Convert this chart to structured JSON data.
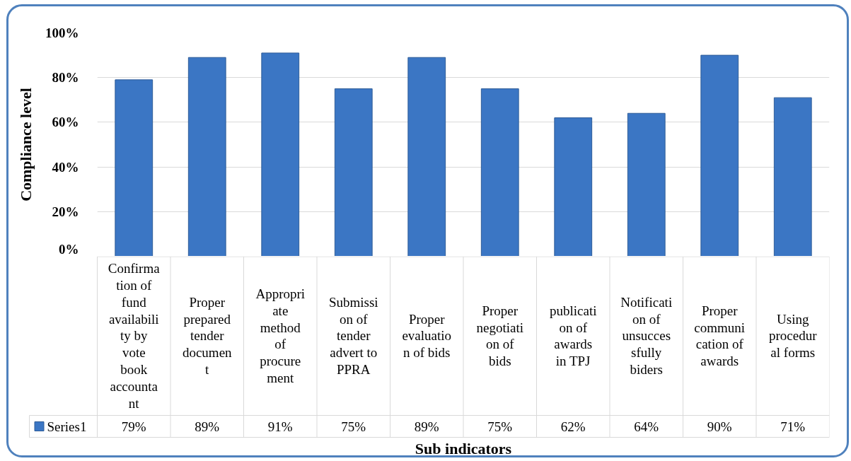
{
  "chart_data": {
    "type": "bar",
    "xlabel": "Sub indicators",
    "ylabel": "Compliance level",
    "categories": [
      "Confirmation of fund availability by vote book accountant",
      "Proper prepared tender document",
      "Appropriate method of procurement",
      "Submission of tender advert to PPRA",
      "Proper evaluation of bids",
      "Proper negotiation of bids",
      "publication of awards in TPJ",
      "Notification of unsuccessfully biders",
      "Proper communication of awards",
      "Using procedural forms"
    ],
    "series": [
      {
        "name": "Series1",
        "color": "#3b76c4",
        "values": [
          79,
          89,
          91,
          75,
          89,
          75,
          62,
          64,
          90,
          71
        ],
        "value_labels": [
          "79%",
          "89%",
          "91%",
          "75%",
          "89%",
          "75%",
          "62%",
          "64%",
          "90%",
          "71%"
        ]
      }
    ],
    "ylim": [
      0,
      100
    ],
    "yticks": [
      {
        "value": 0,
        "label": "0%"
      },
      {
        "value": 20,
        "label": "20%"
      },
      {
        "value": 40,
        "label": "40%"
      },
      {
        "value": 60,
        "label": "60%"
      },
      {
        "value": 80,
        "label": "80%"
      },
      {
        "value": 100,
        "label": "100%"
      }
    ],
    "grid": "y",
    "legend": "bottom left"
  }
}
